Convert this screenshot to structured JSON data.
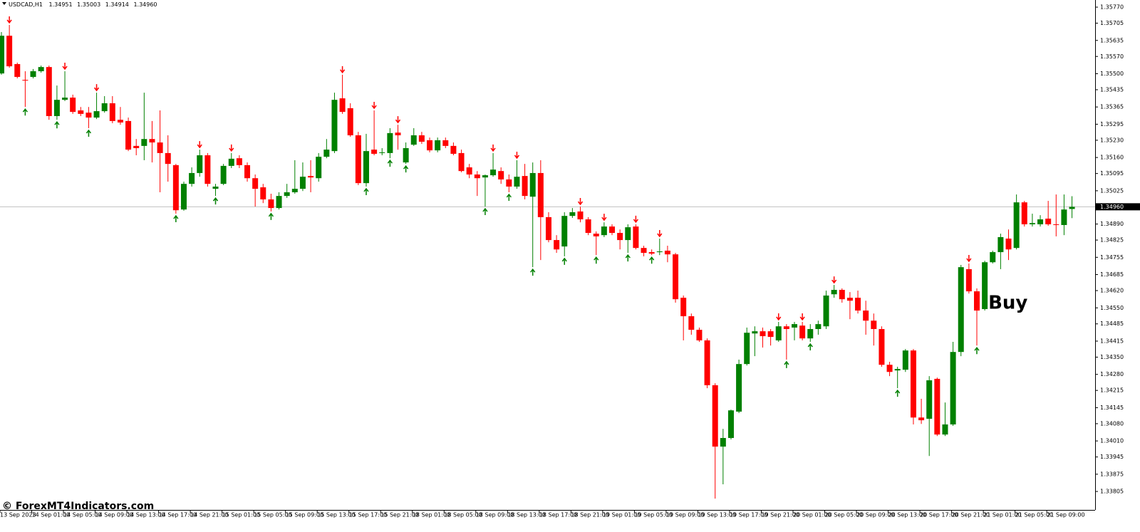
{
  "chart_data": {
    "type": "candlestick",
    "header": {
      "symbol": "USDCAD,H1",
      "open": "1.34951",
      "high": "1.35003",
      "low": "1.34914",
      "close": "1.34960"
    },
    "watermark": "© ForexMT4Indicators.com",
    "annotation": {
      "text": "Buy",
      "index": 124
    },
    "up_color": "#008000",
    "down_color": "#ff0000",
    "ylim": [
      1.33733,
      1.35799
    ],
    "yticks": [
      {
        "value": 1.3577,
        "label": "1.35770"
      },
      {
        "value": 1.35705,
        "label": "1.35705"
      },
      {
        "value": 1.35635,
        "label": "1.35635"
      },
      {
        "value": 1.3557,
        "label": "1.35570"
      },
      {
        "value": 1.355,
        "label": "1.35500"
      },
      {
        "value": 1.35435,
        "label": "1.35435"
      },
      {
        "value": 1.35365,
        "label": "1.35365"
      },
      {
        "value": 1.35295,
        "label": "1.35295"
      },
      {
        "value": 1.3523,
        "label": "1.35230"
      },
      {
        "value": 1.3516,
        "label": "1.35160"
      },
      {
        "value": 1.35095,
        "label": "1.35095"
      },
      {
        "value": 1.35025,
        "label": "1.35025"
      },
      {
        "value": 1.3489,
        "label": "1.34890"
      },
      {
        "value": 1.34825,
        "label": "1.34825"
      },
      {
        "value": 1.34755,
        "label": "1.34755"
      },
      {
        "value": 1.34685,
        "label": "1.34685"
      },
      {
        "value": 1.3462,
        "label": "1.34620"
      },
      {
        "value": 1.3455,
        "label": "1.34550"
      },
      {
        "value": 1.34485,
        "label": "1.34485"
      },
      {
        "value": 1.34415,
        "label": "1.34415"
      },
      {
        "value": 1.3435,
        "label": "1.34350"
      },
      {
        "value": 1.3428,
        "label": "1.34280"
      },
      {
        "value": 1.34215,
        "label": "1.34215"
      },
      {
        "value": 1.34145,
        "label": "1.34145"
      },
      {
        "value": 1.3408,
        "label": "1.34080"
      },
      {
        "value": 1.3401,
        "label": "1.34010"
      },
      {
        "value": 1.33945,
        "label": "1.33945"
      },
      {
        "value": 1.33875,
        "label": "1.33875"
      },
      {
        "value": 1.33805,
        "label": "1.33805"
      }
    ],
    "current_price": {
      "value": 1.3496,
      "label": "1.34960"
    },
    "categories": [
      "13 Sep 2023",
      null,
      null,
      null,
      "14 Sep 01:00",
      null,
      null,
      null,
      "14 Sep 05:00",
      null,
      null,
      null,
      "14 Sep 09:00",
      null,
      null,
      null,
      "14 Sep 13:00",
      null,
      null,
      null,
      "14 Sep 17:00",
      null,
      null,
      null,
      "14 Sep 21:00",
      null,
      null,
      null,
      "15 Sep 01:00",
      null,
      null,
      null,
      "15 Sep 05:00",
      null,
      null,
      null,
      "15 Sep 09:00",
      null,
      null,
      null,
      "15 Sep 13:00",
      null,
      null,
      null,
      "15 Sep 17:00",
      null,
      null,
      null,
      "15 Sep 21:00",
      null,
      null,
      null,
      "18 Sep 01:00",
      null,
      null,
      null,
      "18 Sep 05:00",
      null,
      null,
      null,
      "18 Sep 09:00",
      null,
      null,
      null,
      "18 Sep 13:00",
      null,
      null,
      null,
      "18 Sep 17:00",
      null,
      null,
      null,
      "18 Sep 21:00",
      null,
      null,
      null,
      "19 Sep 01:00",
      null,
      null,
      null,
      "19 Sep 05:00",
      null,
      null,
      null,
      "19 Sep 09:00",
      null,
      null,
      null,
      "19 Sep 13:00",
      null,
      null,
      null,
      "19 Sep 17:00",
      null,
      null,
      null,
      "19 Sep 21:00",
      null,
      null,
      null,
      "20 Sep 01:00",
      null,
      null,
      null,
      "20 Sep 05:00",
      null,
      null,
      null,
      "20 Sep 09:00",
      null,
      null,
      null,
      "20 Sep 13:00",
      null,
      null,
      null,
      "20 Sep 17:00",
      null,
      null,
      null,
      "20 Sep 21:00",
      null,
      null,
      null,
      "21 Sep 01:00",
      null,
      null,
      null,
      "21 Sep 05:00",
      null,
      null,
      null,
      "21 Sep 09:00",
      null,
      null,
      null
    ],
    "open": [
      1.35501,
      1.35654,
      1.35539,
      1.35475,
      1.35487,
      1.3551,
      1.35527,
      1.35328,
      1.35394,
      1.35403,
      1.35351,
      1.35342,
      1.35322,
      1.35348,
      1.3538,
      1.35313,
      1.35308,
      1.35207,
      1.35207,
      1.35235,
      1.35221,
      1.35178,
      1.35129,
      1.34949,
      1.35053,
      1.35097,
      1.35169,
      1.35033,
      1.35053,
      1.35126,
      1.35157,
      1.35129,
      1.35076,
      1.35039,
      1.3499,
      1.34955,
      1.35004,
      1.35019,
      1.35033,
      1.35085,
      1.35076,
      1.35163,
      1.35186,
      1.354,
      1.3536,
      1.3525,
      1.35056,
      1.35192,
      1.35178,
      1.35178,
      1.35261,
      1.3514,
      1.35212,
      1.3525,
      1.3523,
      1.35189,
      1.3523,
      1.35207,
      1.35178,
      1.3512,
      1.35091,
      1.35079,
      1.35088,
      1.35105,
      1.35071,
      1.35042,
      1.35085,
      1.35001,
      1.35097,
      1.34918,
      1.34825,
      1.34799,
      1.34923,
      1.34941,
      1.34909,
      1.34851,
      1.34845,
      1.3488,
      1.34854,
      1.34825,
      1.3488,
      1.34793,
      1.34776,
      1.34776,
      1.34782,
      1.34767,
      1.34591,
      1.34516,
      1.34461,
      1.34418,
      1.34236,
      1.33987,
      1.34022,
      1.34129,
      1.34322,
      1.34446,
      1.34455,
      1.34455,
      1.34418,
      1.34475,
      1.3447,
      1.34478,
      1.34426,
      1.34464,
      1.34475,
      1.34605,
      1.34623,
      1.34591,
      1.34591,
      1.34539,
      1.34498,
      1.34464,
      1.34319,
      1.34296,
      1.34299,
      1.34377,
      1.34105,
      1.341,
      1.34262,
      1.34036,
      1.34077,
      1.34371,
      1.34707,
      1.34617,
      1.34545,
      1.34735,
      1.34776,
      1.34831,
      1.34793,
      1.34978,
      1.34889,
      1.34889,
      1.34912,
      1.34889,
      1.34886,
      1.34951
    ],
    "high": [
      1.35669,
      1.35698,
      1.35545,
      1.3551,
      1.35519,
      1.35533,
      1.35533,
      1.35452,
      1.3551,
      1.35415,
      1.35365,
      1.35365,
      1.35423,
      1.35409,
      1.35409,
      1.35365,
      1.35322,
      1.35235,
      1.35423,
      1.35308,
      1.35351,
      1.3525,
      1.35134,
      1.35062,
      1.3512,
      1.35192,
      1.35178,
      1.35053,
      1.35134,
      1.35178,
      1.35169,
      1.3514,
      1.35091,
      1.35053,
      1.35013,
      1.35019,
      1.35053,
      1.35149,
      1.3514,
      1.35149,
      1.35178,
      1.35235,
      1.35423,
      1.35496,
      1.3538,
      1.35264,
      1.35256,
      1.35351,
      1.35198,
      1.35279,
      1.35293,
      1.35221,
      1.35279,
      1.35264,
      1.35241,
      1.35241,
      1.35241,
      1.35221,
      1.35192,
      1.35134,
      1.35105,
      1.35091,
      1.35178,
      1.3512,
      1.35091,
      1.35149,
      1.35134,
      1.3514,
      1.35149,
      1.34938,
      1.34845,
      1.34938,
      1.34955,
      1.34961,
      1.34918,
      1.3486,
      1.34897,
      1.34889,
      1.34868,
      1.34889,
      1.34889,
      1.34802,
      1.34787,
      1.34831,
      1.34802,
      1.34773,
      1.346,
      1.34527,
      1.3447,
      1.34426,
      1.34244,
      1.34059,
      1.34137,
      1.3434,
      1.3447,
      1.34475,
      1.3447,
      1.34464,
      1.34493,
      1.34484,
      1.34493,
      1.34493,
      1.34484,
      1.34498,
      1.3462,
      1.34643,
      1.34629,
      1.34614,
      1.3462,
      1.34579,
      1.34527,
      1.34475,
      1.34331,
      1.34311,
      1.34383,
      1.34383,
      1.34181,
      1.34273,
      1.34267,
      1.34166,
      1.34412,
      1.34724,
      1.3473,
      1.34629,
      1.34741,
      1.34782,
      1.34851,
      1.34868,
      1.3501,
      1.34984,
      1.34932,
      1.34926,
      1.34984,
      1.3501,
      1.3501,
      1.35003
    ],
    "low": [
      1.35496,
      1.35524,
      1.35481,
      1.35365,
      1.35481,
      1.35504,
      1.35313,
      1.35313,
      1.35389,
      1.35337,
      1.35328,
      1.35279,
      1.35316,
      1.35342,
      1.35299,
      1.35293,
      1.35186,
      1.35169,
      1.35149,
      1.3514,
      1.35019,
      1.35062,
      1.34932,
      1.34944,
      1.35042,
      1.35082,
      1.35042,
      1.35004,
      1.35048,
      1.35117,
      1.35117,
      1.35062,
      1.34961,
      1.34975,
      1.34941,
      1.34949,
      1.34996,
      1.35013,
      1.35024,
      1.35019,
      1.35062,
      1.35157,
      1.35178,
      1.35337,
      1.35244,
      1.35048,
      1.35042,
      1.35169,
      1.35169,
      1.35157,
      1.35192,
      1.35134,
      1.35207,
      1.35215,
      1.35181,
      1.35181,
      1.35198,
      1.35169,
      1.351,
      1.35076,
      1.35004,
      1.34961,
      1.35082,
      1.35053,
      1.35019,
      1.35033,
      1.3499,
      1.34715,
      1.34744,
      1.34816,
      1.34773,
      1.34759,
      1.34915,
      1.34897,
      1.34845,
      1.34764,
      1.34837,
      1.34845,
      1.34787,
      1.34773,
      1.34787,
      1.34759,
      1.34764,
      1.34764,
      1.34735,
      1.34571,
      1.34418,
      1.34441,
      1.34412,
      1.34224,
      1.33776,
      1.33834,
      1.34016,
      1.34123,
      1.34316,
      1.34354,
      1.34389,
      1.34397,
      1.34412,
      1.3434,
      1.34418,
      1.34418,
      1.34412,
      1.34441,
      1.34464,
      1.34591,
      1.34571,
      1.34504,
      1.34527,
      1.34441,
      1.34397,
      1.34311,
      1.34273,
      1.34224,
      1.3429,
      1.34077,
      1.34079,
      1.33949,
      1.3403,
      1.3403,
      1.34071,
      1.34354,
      1.34608,
      1.34397,
      1.34539,
      1.3473,
      1.34707,
      1.34744,
      1.34787,
      1.3488,
      1.3488,
      1.3488,
      1.34883,
      1.3484,
      1.34845,
      1.34914
    ],
    "close": [
      1.35654,
      1.3553,
      1.35487,
      1.35472,
      1.3551,
      1.35527,
      1.35328,
      1.35394,
      1.35403,
      1.35345,
      1.35337,
      1.35322,
      1.35348,
      1.3538,
      1.35308,
      1.35302,
      1.35192,
      1.35198,
      1.35235,
      1.35221,
      1.35178,
      1.35134,
      1.34946,
      1.35053,
      1.35097,
      1.35169,
      1.35053,
      1.35042,
      1.35126,
      1.35155,
      1.35129,
      1.35076,
      1.35033,
      1.3499,
      1.34955,
      1.35004,
      1.35019,
      1.35033,
      1.35082,
      1.35079,
      1.35163,
      1.35192,
      1.35394,
      1.35345,
      1.3525,
      1.35056,
      1.35186,
      1.35175,
      1.35181,
      1.35259,
      1.3525,
      1.35198,
      1.3525,
      1.35224,
      1.35189,
      1.3523,
      1.35207,
      1.35175,
      1.35105,
      1.35091,
      1.35076,
      1.35088,
      1.35111,
      1.35071,
      1.35042,
      1.35082,
      1.35004,
      1.35097,
      1.34918,
      1.34825,
      1.34787,
      1.34923,
      1.34938,
      1.34909,
      1.34854,
      1.3484,
      1.3488,
      1.34854,
      1.34825,
      1.34877,
      1.34793,
      1.34773,
      1.3477,
      1.34779,
      1.34767,
      1.34585,
      1.34516,
      1.34461,
      1.34418,
      1.34236,
      1.33987,
      1.34022,
      1.34134,
      1.34322,
      1.34449,
      1.34455,
      1.34435,
      1.34432,
      1.34475,
      1.34464,
      1.34484,
      1.34426,
      1.34464,
      1.34484,
      1.346,
      1.34623,
      1.34585,
      1.34579,
      1.34539,
      1.34498,
      1.34464,
      1.34319,
      1.3429,
      1.34302,
      1.34377,
      1.34105,
      1.34094,
      1.34256,
      1.34036,
      1.34077,
      1.34371,
      1.34715,
      1.34617,
      1.34539,
      1.34735,
      1.34776,
      1.34837,
      1.34787,
      1.34978,
      1.34889,
      1.34894,
      1.34909,
      1.34889,
      1.34886,
      1.34949,
      1.3496
    ],
    "signals": {
      "up": [
        3,
        7,
        11,
        22,
        27,
        34,
        46,
        49,
        51,
        61,
        64,
        67,
        71,
        75,
        79,
        82,
        99,
        102,
        113,
        123
      ],
      "down": [
        1,
        8,
        12,
        25,
        29,
        43,
        47,
        50,
        62,
        65,
        73,
        76,
        80,
        83,
        98,
        101,
        105,
        122
      ]
    }
  }
}
